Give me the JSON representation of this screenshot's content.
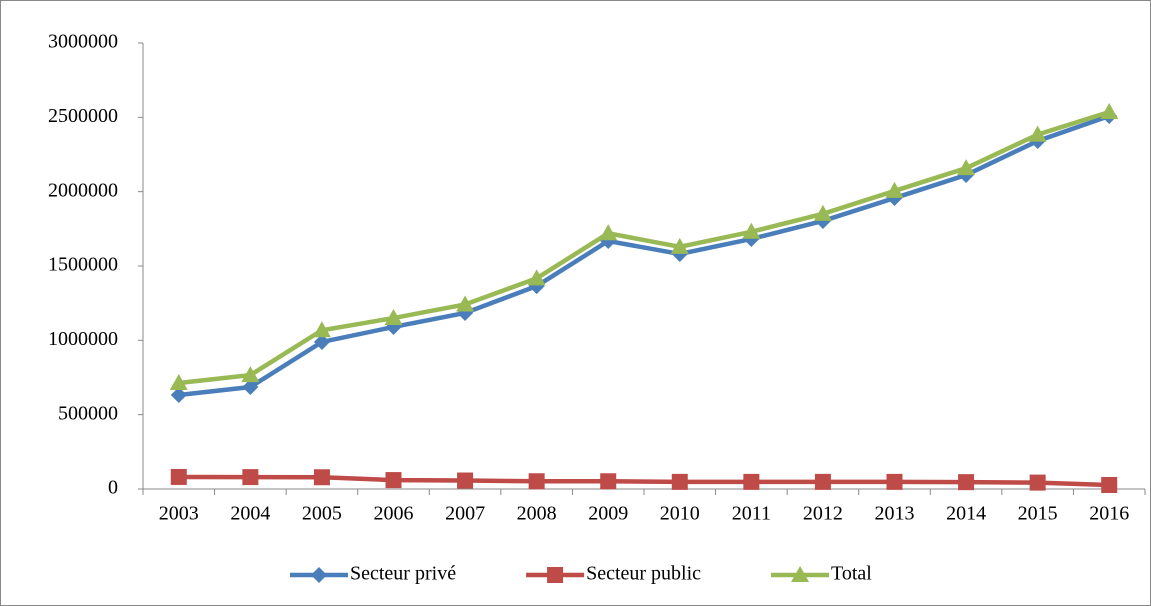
{
  "chart_data": {
    "type": "line",
    "categories": [
      "2003",
      "2004",
      "2005",
      "2006",
      "2007",
      "2008",
      "2009",
      "2010",
      "2011",
      "2012",
      "2013",
      "2014",
      "2015",
      "2016"
    ],
    "series": [
      {
        "name": "Secteur privé",
        "color": "#4a7ebb",
        "marker": "diamond",
        "values": [
          632000,
          686000,
          989000,
          1090000,
          1184000,
          1365000,
          1668000,
          1581000,
          1682000,
          1803000,
          1957000,
          2112000,
          2341000,
          2509000
        ]
      },
      {
        "name": "Secteur public",
        "color": "#be4b48",
        "marker": "square",
        "values": [
          81000,
          80000,
          79000,
          60000,
          57000,
          52000,
          52000,
          48000,
          48000,
          48000,
          48000,
          46000,
          43000,
          27000
        ]
      },
      {
        "name": "Total",
        "color": "#98b954",
        "marker": "triangle",
        "values": [
          713000,
          766000,
          1068000,
          1150000,
          1241000,
          1417000,
          1720000,
          1629000,
          1730000,
          1851000,
          2005000,
          2158000,
          2384000,
          2536000
        ]
      }
    ],
    "ylim": [
      0,
      3000000
    ],
    "yticks": [
      0,
      500000,
      1000000,
      1500000,
      2000000,
      2500000,
      3000000
    ],
    "grid": false,
    "legend": "bottom"
  }
}
